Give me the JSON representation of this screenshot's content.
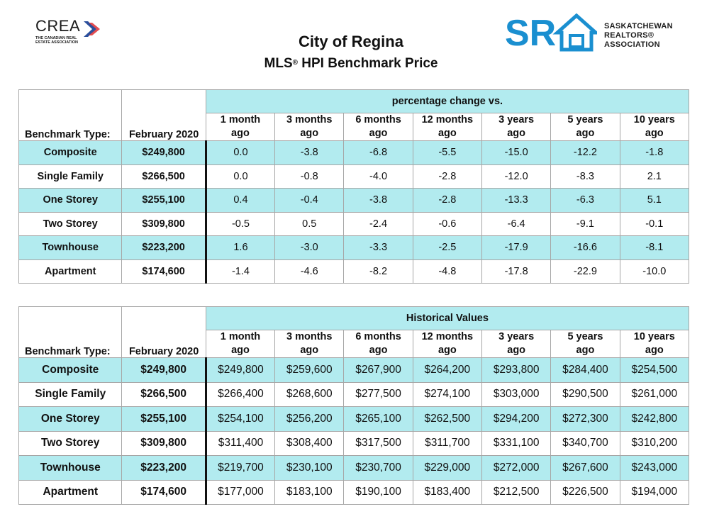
{
  "header": {
    "crea_wordmark": "CREA",
    "crea_tagline": "THE CANADIAN REAL ESTATE ASSOCIATION",
    "sra_wordmark": "SR",
    "sra_name_lines": [
      "SASKATCHEWAN",
      "REALTORS®",
      "ASSOCIATION"
    ],
    "title": "City of Regina",
    "subtitle_prefix": "MLS",
    "subtitle_mark": "®",
    "subtitle_rest": " HPI Benchmark Price"
  },
  "colors": {
    "teal": "#b2ebef",
    "sra_blue": "#1a8fd0",
    "crea_red": "#e03a3e",
    "crea_blue": "#2a4f9c"
  },
  "column_headers": {
    "benchmark_type": "Benchmark Type:",
    "period": "February 2020",
    "periods": [
      [
        "1 month",
        "ago"
      ],
      [
        "3 months",
        "ago"
      ],
      [
        "6 months",
        "ago"
      ],
      [
        "12 months",
        "ago"
      ],
      [
        "3 years",
        "ago"
      ],
      [
        "5 years",
        "ago"
      ],
      [
        "10 years",
        "ago"
      ]
    ]
  },
  "pct_table": {
    "group_title": "percentage change vs.",
    "rows": [
      {
        "type": "Composite",
        "price": "$249,800",
        "values": [
          "0.0",
          "-3.8",
          "-6.8",
          "-5.5",
          "-15.0",
          "-12.2",
          "-1.8"
        ]
      },
      {
        "type": "Single Family",
        "price": "$266,500",
        "values": [
          "0.0",
          "-0.8",
          "-4.0",
          "-2.8",
          "-12.0",
          "-8.3",
          "2.1"
        ]
      },
      {
        "type": "One Storey",
        "price": "$255,100",
        "values": [
          "0.4",
          "-0.4",
          "-3.8",
          "-2.8",
          "-13.3",
          "-6.3",
          "5.1"
        ]
      },
      {
        "type": "Two Storey",
        "price": "$309,800",
        "values": [
          "-0.5",
          "0.5",
          "-2.4",
          "-0.6",
          "-6.4",
          "-9.1",
          "-0.1"
        ]
      },
      {
        "type": "Townhouse",
        "price": "$223,200",
        "values": [
          "1.6",
          "-3.0",
          "-3.3",
          "-2.5",
          "-17.9",
          "-16.6",
          "-8.1"
        ]
      },
      {
        "type": "Apartment",
        "price": "$174,600",
        "values": [
          "-1.4",
          "-4.6",
          "-8.2",
          "-4.8",
          "-17.8",
          "-22.9",
          "-10.0"
        ]
      }
    ]
  },
  "hist_table": {
    "group_title": "Historical Values",
    "rows": [
      {
        "type": "Composite",
        "price": "$249,800",
        "values": [
          "$249,800",
          "$259,600",
          "$267,900",
          "$264,200",
          "$293,800",
          "$284,400",
          "$254,500"
        ]
      },
      {
        "type": "Single Family",
        "price": "$266,500",
        "values": [
          "$266,400",
          "$268,600",
          "$277,500",
          "$274,100",
          "$303,000",
          "$290,500",
          "$261,000"
        ]
      },
      {
        "type": "One Storey",
        "price": "$255,100",
        "values": [
          "$254,100",
          "$256,200",
          "$265,100",
          "$262,500",
          "$294,200",
          "$272,300",
          "$242,800"
        ]
      },
      {
        "type": "Two Storey",
        "price": "$309,800",
        "values": [
          "$311,400",
          "$308,400",
          "$317,500",
          "$311,700",
          "$331,100",
          "$340,700",
          "$310,200"
        ]
      },
      {
        "type": "Townhouse",
        "price": "$223,200",
        "values": [
          "$219,700",
          "$230,100",
          "$230,700",
          "$229,000",
          "$272,000",
          "$267,600",
          "$243,000"
        ]
      },
      {
        "type": "Apartment",
        "price": "$174,600",
        "values": [
          "$177,000",
          "$183,100",
          "$190,100",
          "$183,400",
          "$212,500",
          "$226,500",
          "$194,000"
        ]
      }
    ]
  }
}
